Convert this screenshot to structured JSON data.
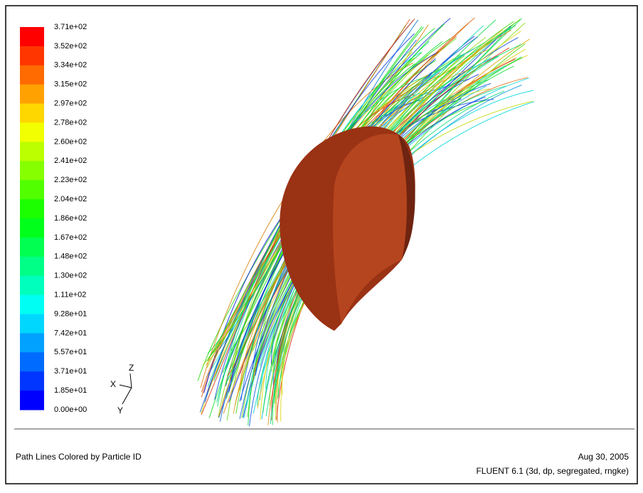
{
  "colorbar": {
    "labels": [
      "3.71e+02",
      "3.52e+02",
      "3.34e+02",
      "3.15e+02",
      "2.97e+02",
      "2.78e+02",
      "2.60e+02",
      "2.41e+02",
      "2.23e+02",
      "2.04e+02",
      "1.86e+02",
      "1.67e+02",
      "1.48e+02",
      "1.30e+02",
      "1.11e+02",
      "9.28e+01",
      "7.42e+01",
      "5.57e+01",
      "3.71e+01",
      "1.85e+01",
      "0.00e+00"
    ]
  },
  "axes_triad": {
    "x": "X",
    "y": "Y",
    "z": "Z"
  },
  "footer": {
    "title": "Path Lines Colored by Particle ID",
    "date": "Aug 30, 2005",
    "solver": "FLUENT 6.1 (3d, dp, segregated, rngke)"
  }
}
